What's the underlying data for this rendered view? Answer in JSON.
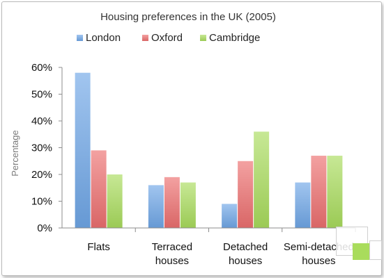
{
  "chart_data": {
    "type": "bar",
    "title": "Housing preferences in the UK (2005)",
    "xlabel": "",
    "ylabel": "Percentage",
    "categories": [
      [
        "Flats"
      ],
      [
        "Terraced",
        "houses"
      ],
      [
        "Detached",
        "houses"
      ],
      [
        "Semi-detached",
        "houses"
      ]
    ],
    "series": [
      {
        "name": "London",
        "color": "#6fa6e6",
        "values": [
          58,
          16,
          9,
          17
        ]
      },
      {
        "name": "Oxford",
        "color": "#ec6f6f",
        "values": [
          29,
          19,
          25,
          27
        ]
      },
      {
        "name": "Cambridge",
        "color": "#a9dc5c",
        "values": [
          20,
          17,
          36,
          27
        ]
      }
    ],
    "ylim": [
      0,
      60
    ],
    "ytick_values": [
      0,
      10,
      20,
      30,
      40,
      50,
      60
    ],
    "ytick_labels": [
      "0%",
      "10%",
      "20%",
      "30%",
      "40%",
      "50%",
      "60%"
    ],
    "legend_position": "top",
    "grid": false
  }
}
